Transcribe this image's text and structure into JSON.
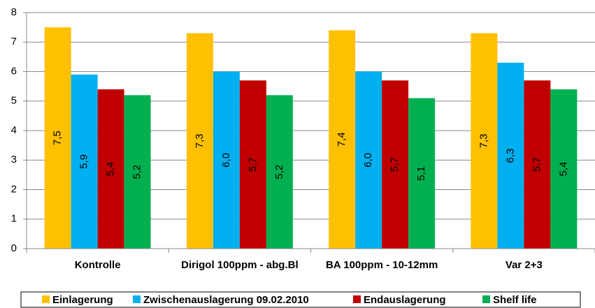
{
  "chart_data": {
    "type": "bar",
    "categories": [
      "Kontrolle",
      "Dirigol 100ppm - abg.Bl",
      "BA 100ppm - 10-12mm",
      "Var 2+3"
    ],
    "series": [
      {
        "name": "Einlagerung",
        "color": "#ffc000",
        "values": [
          7.5,
          7.3,
          7.4,
          7.3
        ],
        "value_labels": [
          "7,5",
          "7,3",
          "7,4",
          "7,3"
        ]
      },
      {
        "name": "Zwischenauslagerung 09.02.2010",
        "color": "#00b0f0",
        "values": [
          5.9,
          6.0,
          6.0,
          6.3
        ],
        "value_labels": [
          "5,9",
          "6,0",
          "6,0",
          "6,3"
        ]
      },
      {
        "name": "Endauslagerung",
        "color": "#c00000",
        "values": [
          5.4,
          5.7,
          5.7,
          5.7
        ],
        "value_labels": [
          "5,4",
          "5,7",
          "5,7",
          "5,7"
        ]
      },
      {
        "name": "Shelf life",
        "color": "#00b050",
        "values": [
          5.2,
          5.2,
          5.1,
          5.4
        ],
        "value_labels": [
          "5,2",
          "5,2",
          "5,1",
          "5,4"
        ]
      }
    ],
    "ylim": [
      0,
      8
    ],
    "yticks": [
      0,
      1,
      2,
      3,
      4,
      5,
      6,
      7,
      8
    ],
    "grid": true
  }
}
